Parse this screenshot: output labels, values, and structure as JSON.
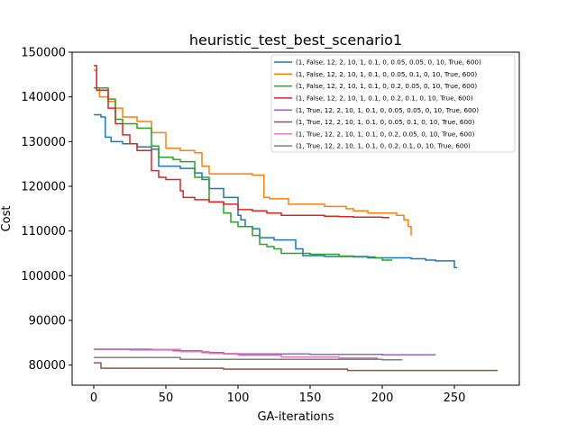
{
  "chart_data": {
    "type": "line",
    "title": "heuristic_test_best_scenario1",
    "xlabel": "GA-iterations",
    "ylabel": "Cost",
    "xlim": [
      -15,
      295
    ],
    "ylim": [
      75500,
      150000
    ],
    "xticks": [
      0,
      50,
      100,
      150,
      200,
      250
    ],
    "yticks": [
      80000,
      90000,
      100000,
      110000,
      120000,
      130000,
      140000,
      150000
    ],
    "xtick_labels": [
      "0",
      "50",
      "100",
      "150",
      "200",
      "250"
    ],
    "ytick_labels": [
      "80000",
      "90000",
      "100000",
      "110000",
      "120000",
      "130000",
      "140000",
      "150000"
    ],
    "grid": false,
    "legend_position": "top-right",
    "series": [
      {
        "name": "(1, False, 12, 2, 10, 1, 0.1, 0, 0.05, 0.05, 0, 10, True, 600)",
        "color": "#1f77b4",
        "x": [
          0,
          5,
          8,
          12,
          20,
          30,
          40,
          45,
          60,
          70,
          75,
          80,
          90,
          100,
          102,
          105,
          110,
          115,
          125,
          140,
          145,
          160,
          190,
          210,
          220,
          230,
          237,
          250,
          252
        ],
        "y": [
          136000,
          135500,
          131000,
          130000,
          129500,
          128800,
          128300,
          124500,
          124000,
          123000,
          121500,
          119500,
          117500,
          113500,
          112500,
          111000,
          110500,
          108500,
          108000,
          106000,
          104500,
          104300,
          104000,
          104000,
          103800,
          103500,
          103300,
          101800,
          101800
        ]
      },
      {
        "name": "(1, False, 12, 2, 10, 1, 0.1, 0, 0.05, 0.1, 0, 10, True, 600)",
        "color": "#ff7f0e",
        "x": [
          0,
          2,
          4,
          10,
          15,
          20,
          30,
          40,
          50,
          60,
          70,
          75,
          80,
          90,
          110,
          118,
          122,
          135,
          160,
          175,
          180,
          190,
          210,
          215,
          218,
          220
        ],
        "y": [
          146000,
          142000,
          140000,
          139000,
          137500,
          135500,
          134500,
          132000,
          128500,
          128000,
          127500,
          124500,
          122800,
          122800,
          122500,
          117500,
          117200,
          116000,
          115500,
          115000,
          114500,
          114000,
          113500,
          112500,
          111000,
          109000
        ]
      },
      {
        "name": "(1, False, 12, 2, 10, 1, 0.1, 0, 0.2, 0.05, 0, 10, True, 600)",
        "color": "#2ca02c",
        "x": [
          0,
          5,
          10,
          15,
          20,
          30,
          40,
          45,
          55,
          60,
          70,
          80,
          90,
          95,
          100,
          110,
          115,
          120,
          125,
          130,
          150,
          170,
          180,
          195,
          200,
          207
        ],
        "y": [
          142000,
          142000,
          139500,
          135000,
          134000,
          133000,
          129000,
          126500,
          126000,
          125500,
          122000,
          116500,
          114000,
          112000,
          111000,
          109000,
          107000,
          106500,
          106000,
          105000,
          104800,
          104400,
          104200,
          104000,
          103500,
          103500
        ]
      },
      {
        "name": "(1, False, 12, 2, 10, 1, 0.1, 0, 0.2, 0.1, 0, 10, True, 600)",
        "color": "#d62728",
        "x": [
          0,
          2,
          10,
          15,
          20,
          25,
          30,
          40,
          45,
          50,
          60,
          62,
          70,
          80,
          90,
          100,
          110,
          120,
          130,
          150,
          160,
          170,
          180,
          200,
          205
        ],
        "y": [
          147000,
          141500,
          137500,
          134000,
          131500,
          129500,
          128000,
          123500,
          122000,
          121500,
          119000,
          117500,
          117000,
          116500,
          116000,
          114800,
          114500,
          114000,
          113500,
          113500,
          113300,
          113200,
          113100,
          113000,
          113000
        ]
      },
      {
        "name": "(1, True, 12, 2, 10, 1, 0.1, 0, 0.05, 0.05, 0, 10, True, 600)",
        "color": "#9467bd",
        "x": [
          0,
          25,
          55,
          75,
          90,
          150,
          200,
          237
        ],
        "y": [
          83500,
          83400,
          83200,
          82800,
          82500,
          82400,
          82300,
          82300
        ]
      },
      {
        "name": "(1, True, 12, 2, 10, 1, 0.1, 0, 0.05, 0.1, 0, 10, True, 600)",
        "color": "#8c564b",
        "x": [
          0,
          3,
          5,
          50,
          90,
          174,
          176,
          280
        ],
        "y": [
          80500,
          80500,
          79300,
          79300,
          79100,
          79100,
          78800,
          78800
        ]
      },
      {
        "name": "(1, True, 12, 2, 10, 1, 0.1, 0, 0.2, 0.05, 0, 10, True, 600)",
        "color": "#e377c2",
        "x": [
          0,
          40,
          60,
          80,
          100,
          130,
          170,
          197
        ],
        "y": [
          83600,
          83500,
          83000,
          82600,
          82200,
          81800,
          81600,
          81600
        ]
      },
      {
        "name": "(1, True, 12, 2, 10, 1, 0.1, 0, 0.2, 0.1, 0, 10, True, 600)",
        "color": "#7f7f7f",
        "x": [
          0,
          57,
          60,
          100,
          150,
          200,
          214
        ],
        "y": [
          81700,
          81700,
          81300,
          81300,
          81300,
          81200,
          81200
        ]
      }
    ]
  }
}
